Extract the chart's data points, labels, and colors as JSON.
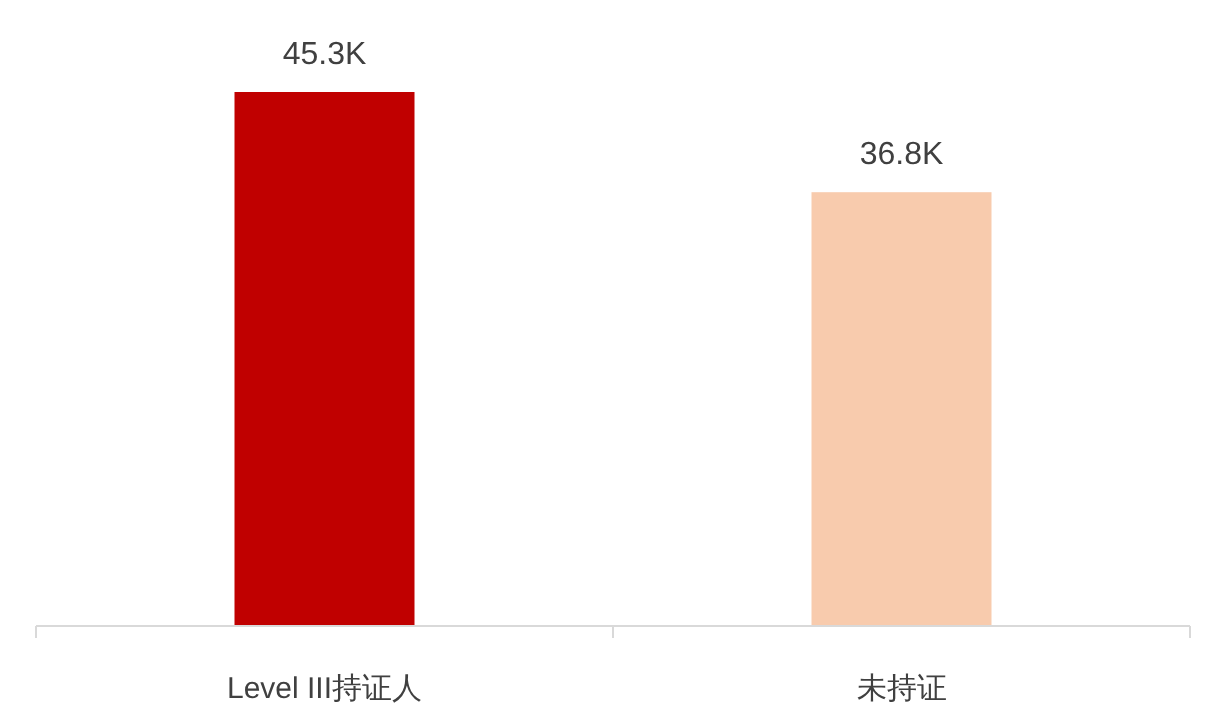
{
  "chart_data": {
    "type": "bar",
    "categories": [
      "Level III持证人",
      "未持证"
    ],
    "values": [
      45300,
      36800
    ],
    "colors": [
      "#c00000",
      "#f8cbad"
    ],
    "value_labels": [
      "45.3K",
      "36.8K"
    ],
    "grid": false,
    "legend": false
  }
}
